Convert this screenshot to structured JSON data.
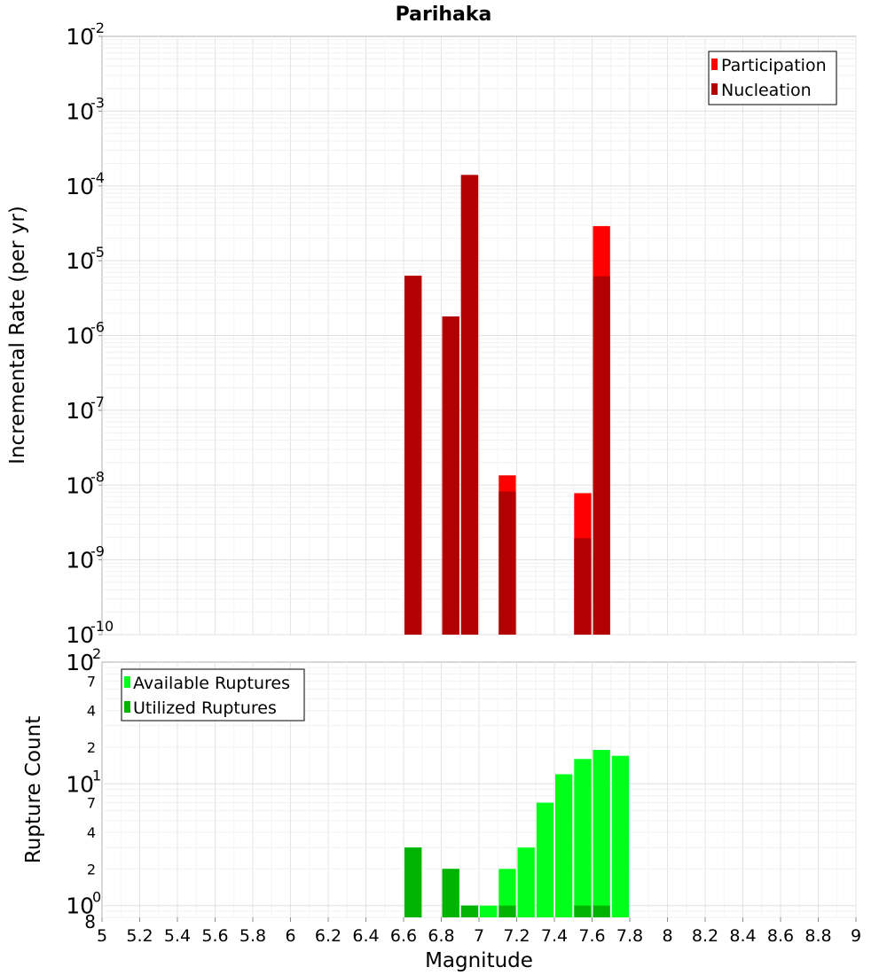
{
  "chart_data": [
    {
      "type": "bar",
      "title": "Parihaka",
      "ylabel": "Incremental Rate (per yr)",
      "xlabel": "",
      "y_scale": "log",
      "ylim": [
        1e-10,
        0.01
      ],
      "xlim": [
        5,
        9
      ],
      "grid": true,
      "legend_position": "top-right",
      "y_ticks": [
        {
          "base": "10",
          "exp": "-10"
        },
        {
          "base": "10",
          "exp": "-9"
        },
        {
          "base": "10",
          "exp": "-8"
        },
        {
          "base": "10",
          "exp": "-7"
        },
        {
          "base": "10",
          "exp": "-6"
        },
        {
          "base": "10",
          "exp": "-5"
        },
        {
          "base": "10",
          "exp": "-4"
        },
        {
          "base": "10",
          "exp": "-3"
        },
        {
          "base": "10",
          "exp": "-2"
        }
      ],
      "bin_width": 0.1,
      "series": [
        {
          "name": "Participation",
          "color": "#ff0000",
          "x": [
            6.65,
            6.85,
            6.95,
            7.15,
            7.55,
            7.65
          ],
          "values": [
            6.3e-06,
            1.8e-06,
            0.00014,
            1.35e-08,
            7.8e-09,
            2.9e-05
          ]
        },
        {
          "name": "Nucleation",
          "color": "#b30000",
          "x": [
            6.65,
            6.85,
            6.95,
            7.15,
            7.55,
            7.65
          ],
          "values": [
            6.3e-06,
            1.8e-06,
            0.00014,
            8.2e-09,
            1.95e-09,
            6.2e-06
          ]
        }
      ]
    },
    {
      "type": "bar",
      "title": "",
      "ylabel": "Rupture Count",
      "xlabel": "Magnitude",
      "y_scale": "log",
      "ylim": [
        0.8,
        100
      ],
      "xlim": [
        5,
        9
      ],
      "grid": true,
      "legend_position": "top-left",
      "x_ticks": [
        "5",
        "5.2",
        "5.4",
        "5.6",
        "5.8",
        "6",
        "6.2",
        "6.4",
        "6.6",
        "6.8",
        "7",
        "7.2",
        "7.4",
        "7.6",
        "7.8",
        "8",
        "8.2",
        "8.4",
        "8.6",
        "8.8",
        "9"
      ],
      "y_major_ticks": [
        {
          "base": "10",
          "exp": "0"
        },
        {
          "base": "10",
          "exp": "1"
        },
        {
          "base": "10",
          "exp": "2"
        }
      ],
      "y_minor_ticks": [
        "8",
        "2",
        "4",
        "7",
        "2",
        "4",
        "7"
      ],
      "bin_width": 0.1,
      "series": [
        {
          "name": "Available Ruptures",
          "color": "#00ff1a",
          "x": [
            6.65,
            6.85,
            6.95,
            7.05,
            7.15,
            7.25,
            7.35,
            7.45,
            7.55,
            7.65,
            7.75
          ],
          "values": [
            3,
            2,
            1,
            1,
            2,
            3,
            7,
            12,
            16,
            19,
            17
          ]
        },
        {
          "name": "Utilized Ruptures",
          "color": "#00b300",
          "x": [
            6.65,
            6.85,
            6.95,
            7.15,
            7.55,
            7.65
          ],
          "values": [
            3,
            2,
            1,
            1,
            1,
            1
          ]
        }
      ]
    }
  ]
}
